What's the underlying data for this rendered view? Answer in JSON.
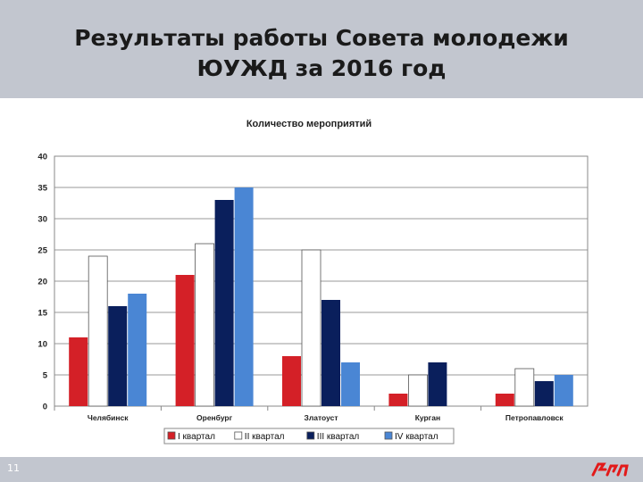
{
  "slide": {
    "title": "Результаты работы Совета молодежи ЮУЖД за 2016 год",
    "page_number": "11",
    "brand_logo": "rzd-logo",
    "accent_color": "#e21a1a"
  },
  "chart_data": {
    "type": "bar",
    "title": "Количество мероприятий",
    "xlabel": "",
    "ylabel": "",
    "ylim": [
      0,
      40
    ],
    "yticks": [
      0,
      5,
      10,
      15,
      20,
      25,
      30,
      35,
      40
    ],
    "grid": true,
    "legend_position": "bottom",
    "categories": [
      "Челябинск",
      "Оренбург",
      "Златоуст",
      "Курган",
      "Петропавловск"
    ],
    "series": [
      {
        "name": "I квартал",
        "color": "#d42027",
        "values": [
          11,
          21,
          8,
          2,
          2
        ]
      },
      {
        "name": "II квартал",
        "color": "#ffffff",
        "values": [
          24,
          26,
          25,
          5,
          6
        ]
      },
      {
        "name": "III квартал",
        "color": "#0a1f5c",
        "values": [
          16,
          33,
          17,
          7,
          4
        ]
      },
      {
        "name": "IV квартал",
        "color": "#4a86d4",
        "values": [
          18,
          35,
          7,
          0,
          5
        ]
      }
    ]
  }
}
